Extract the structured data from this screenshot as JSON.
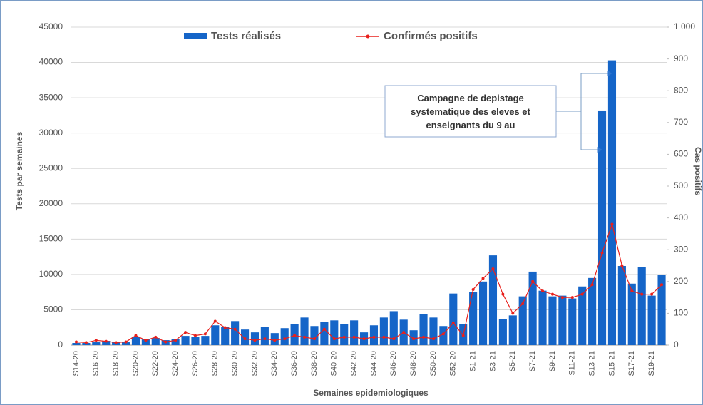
{
  "chart_data": {
    "type": "bar",
    "x_label": "Semaines epidemiologiques",
    "y_label": "Tests par semaines",
    "y2_label": "Cas positifs",
    "annotation": "Campagne de depistage systematique des eleves et enseignants du 9 au",
    "categories": [
      "S14-20",
      null,
      "S16-20",
      null,
      "S18-20",
      null,
      "S20-20",
      null,
      "S22-20",
      null,
      "S24-20",
      null,
      "S26-20",
      null,
      "S28-20",
      null,
      "S30-20",
      null,
      "S32-20",
      null,
      "S34-20",
      null,
      "S36-20",
      null,
      "S38-20",
      null,
      "S40-20",
      null,
      "S42-20",
      null,
      "S44-20",
      null,
      "S46-20",
      null,
      "S48-20",
      null,
      "S50-20",
      null,
      "S52-20",
      null,
      "S1-21",
      null,
      "S3-21",
      null,
      "S5-21",
      null,
      "S7-21",
      null,
      "S9-21",
      null,
      "S11-21",
      null,
      "S13-21",
      null,
      "S15-21",
      null,
      "S17-21",
      null,
      "S19-21",
      null
    ],
    "series": [
      {
        "name": "Tests réalisés",
        "type": "bar",
        "color": "#1565c8",
        "values": [
          300,
          300,
          400,
          600,
          500,
          400,
          1200,
          800,
          1000,
          700,
          900,
          1300,
          1200,
          1300,
          2800,
          2600,
          3400,
          2200,
          1800,
          2600,
          1700,
          2400,
          3000,
          3900,
          2700,
          3300,
          3500,
          3000,
          3500,
          1800,
          2800,
          3900,
          4800,
          3600,
          2100,
          4400,
          3900,
          2700,
          7300,
          3000,
          7500,
          9000,
          12700,
          3700,
          4200,
          6900,
          10400,
          7700,
          6900,
          7000,
          6600,
          8300,
          9500,
          33200,
          40300,
          11200,
          8700,
          11000,
          7000,
          9900
        ]
      },
      {
        "name": "Confirmés positifs",
        "type": "line",
        "axis": "y2",
        "color": "#e8201c",
        "values": [
          10,
          8,
          15,
          12,
          8,
          10,
          30,
          15,
          25,
          10,
          15,
          40,
          30,
          35,
          75,
          55,
          50,
          20,
          15,
          20,
          15,
          20,
          30,
          25,
          20,
          50,
          20,
          25,
          25,
          20,
          25,
          25,
          20,
          40,
          20,
          25,
          20,
          35,
          70,
          30,
          175,
          210,
          240,
          160,
          100,
          130,
          200,
          170,
          160,
          150,
          150,
          160,
          190,
          290,
          380,
          250,
          170,
          160,
          160,
          190
        ]
      }
    ],
    "ylim": [
      0,
      45000
    ],
    "yticks": [
      0,
      5000,
      10000,
      15000,
      20000,
      25000,
      30000,
      35000,
      40000,
      45000
    ],
    "y2lim": [
      0,
      1000
    ],
    "y2ticks": [
      0,
      100,
      200,
      300,
      400,
      500,
      600,
      700,
      800,
      900,
      {
        "value": 1000,
        "label": "1 000"
      }
    ],
    "grid": true,
    "legend": "top"
  }
}
